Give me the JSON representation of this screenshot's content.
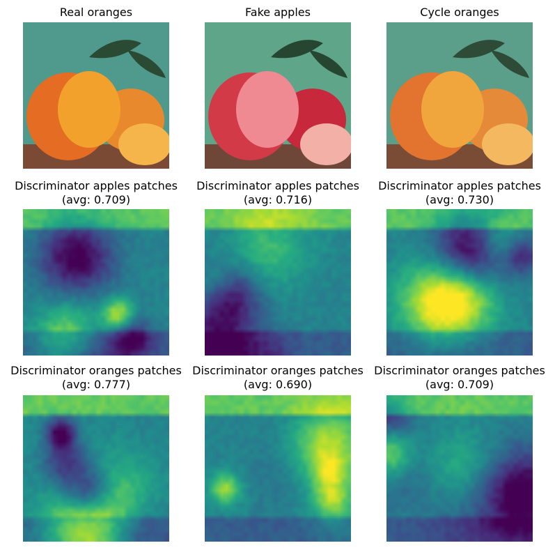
{
  "grid": [
    [
      {
        "title": "Real oranges",
        "kind": "photo",
        "variant": "orange"
      },
      {
        "title": "Fake apples",
        "kind": "photo",
        "variant": "apple"
      },
      {
        "title": "Cycle oranges",
        "kind": "photo",
        "variant": "orange-cycle"
      }
    ],
    [
      {
        "title": "Discriminator apples patches",
        "avg": "(avg: 0.709)",
        "kind": "heatmap",
        "seed": 3
      },
      {
        "title": "Discriminator apples patches",
        "avg": "(avg: 0.716)",
        "kind": "heatmap",
        "seed": 7
      },
      {
        "title": "Discriminator apples patches",
        "avg": "(avg: 0.730)",
        "kind": "heatmap",
        "seed": 11
      }
    ],
    [
      {
        "title": "Discriminator oranges patches",
        "avg": "(avg: 0.777)",
        "kind": "heatmap",
        "seed": 19
      },
      {
        "title": "Discriminator oranges patches",
        "avg": "(avg: 0.690)",
        "kind": "heatmap",
        "seed": 23
      },
      {
        "title": "Discriminator oranges patches",
        "avg": "(avg: 0.709)",
        "kind": "heatmap",
        "seed": 29
      }
    ]
  ],
  "colormap": "viridis"
}
